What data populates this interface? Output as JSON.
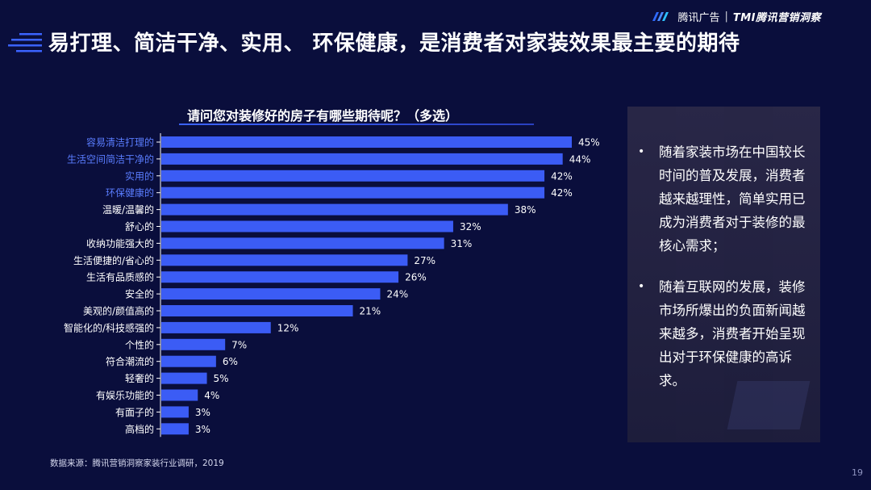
{
  "brand": {
    "icon": "tencent-ads-logo-icon",
    "name": "腾讯广告",
    "separator": "|",
    "sub": "TMI腾讯营销洞察"
  },
  "title": "易打理、简洁干净、实用、 环保健康，是消费者对家装效果最主要的期待",
  "question": "请问您对装修好的房子有哪些期待呢？（多选）",
  "chart_data": {
    "type": "bar",
    "orientation": "horizontal",
    "title": "请问您对装修好的房子有哪些期待呢？（多选）",
    "categories": [
      "容易清洁打理的",
      "生活空间简洁干净的",
      "实用的",
      "环保健康的",
      "温暖/温馨的",
      "舒心的",
      "收纳功能强大的",
      "生活便捷的/省心的",
      "生活有品质感的",
      "安全的",
      "美观的/颜值高的",
      "智能化的/科技感强的",
      "个性的",
      "符合潮流的",
      "轻奢的",
      "有娱乐功能的",
      "有面子的",
      "高档的"
    ],
    "values": [
      45,
      44,
      42,
      42,
      38,
      32,
      31,
      27,
      26,
      24,
      21,
      12,
      7,
      6,
      5,
      4,
      3,
      3
    ],
    "value_labels": [
      "45%",
      "44%",
      "42%",
      "42%",
      "38%",
      "32%",
      "31%",
      "27%",
      "26%",
      "24%",
      "21%",
      "12%",
      "7%",
      "6%",
      "5%",
      "4%",
      "3%",
      "3%"
    ],
    "highlighted": [
      0,
      1,
      2,
      3
    ],
    "xlabel": "",
    "ylabel": "",
    "xlim": [
      0,
      45
    ],
    "colors": {
      "bar": "#3b5cf5",
      "highlight_label": "#5a7dff",
      "label": "#ffffff",
      "axis": "#ffffff"
    }
  },
  "panel": {
    "bullet": "•",
    "points": [
      "随着家装市场在中国较长时间的普及发展，消费者越来越理性，简单实用已成为消费者对于装修的最核心需求；",
      "随着互联网的发展，装修市场所爆出的负面新闻越来越多，消费者开始呈现出对于环保健康的高诉求。"
    ]
  },
  "source": "数据来源：腾讯营销洞察家装行业调研，2019",
  "page_number": "19"
}
